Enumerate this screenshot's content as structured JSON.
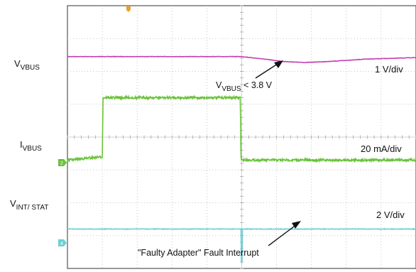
{
  "chart_data": {
    "type": "line",
    "title": "",
    "grid": true,
    "x_divisions": 10,
    "y_divisions": 8,
    "series": [
      {
        "name": "VVBUS",
        "label_main": "V",
        "label_sub": "VBUS",
        "color": "#c33bb0",
        "scale": "1 V/div",
        "x": [
          0,
          5.0,
          5.6,
          6.2,
          6.8,
          7.5,
          8.5,
          10
        ],
        "y": [
          6.45,
          6.45,
          6.38,
          6.3,
          6.27,
          6.3,
          6.37,
          6.42
        ]
      },
      {
        "name": "IVBUS",
        "label_main": "I",
        "label_sub": "VBUS",
        "color": "#6bc23a",
        "scale": "20 mA/div",
        "x": [
          0,
          1.0,
          1.02,
          4.96,
          4.98,
          10
        ],
        "y": [
          3.3,
          3.4,
          5.2,
          5.2,
          3.3,
          3.3
        ]
      },
      {
        "name": "VINT/ STAT",
        "label_main": "V",
        "label_sub": "INT/ STAT",
        "color": "#6fcfd4",
        "scale": "2 V/div",
        "x": [
          0,
          4.98,
          4.99,
          5.01,
          5.02,
          10
        ],
        "y": [
          1.2,
          1.2,
          0.15,
          0.15,
          1.2,
          1.2
        ]
      }
    ],
    "annotations": [
      {
        "name": "vbus-threshold-annotation",
        "main": "V",
        "sub": "VBUS",
        "text": " < 3.8 V"
      },
      {
        "name": "fault-interrupt-annotation",
        "text": "\"Faulty Adapter\" Fault Interrupt"
      }
    ],
    "channel_markers": [
      {
        "name": "ch2-marker",
        "text": "2",
        "color": "#6bc23a"
      },
      {
        "name": "ch4-marker",
        "text": "4",
        "color": "#6fcfd4"
      }
    ],
    "trigger_color": "#f0a020"
  }
}
